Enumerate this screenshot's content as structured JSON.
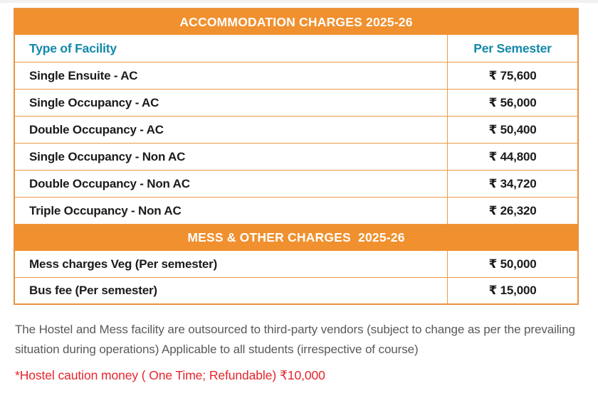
{
  "colors": {
    "band_orange": "#f0902e",
    "border_orange": "#ee9a45",
    "header_teal": "#1389a8",
    "row_text": "#1b1b1b",
    "note_gray": "#58595b",
    "caution_red": "#e4252c"
  },
  "accommodation": {
    "title": "ACCOMMODATION CHARGES 2025-26",
    "col_facility": "Type of Facility",
    "col_charge": "Per Semester",
    "rows": [
      {
        "facility": "Single Ensuite - AC",
        "charge": "₹ 75,600"
      },
      {
        "facility": "Single Occupancy - AC",
        "charge": "₹ 56,000"
      },
      {
        "facility": "Double Occupancy - AC",
        "charge": "₹ 50,400"
      },
      {
        "facility": "Single Occupancy - Non AC",
        "charge": "₹ 44,800"
      },
      {
        "facility": "Double Occupancy - Non AC",
        "charge": "₹ 34,720"
      },
      {
        "facility": "Triple Occupancy - Non AC",
        "charge": "₹ 26,320"
      }
    ]
  },
  "mess": {
    "title": "MESS & OTHER CHARGES  2025-26",
    "rows": [
      {
        "facility": "Mess charges Veg (Per semester)",
        "charge": "₹ 50,000"
      },
      {
        "facility": "Bus fee (Per semester)",
        "charge": "₹ 15,000"
      }
    ]
  },
  "notes": {
    "outsourced": "The Hostel and Mess facility are outsourced to third-party vendors (subject to change as per the prevailing situation during operations) Applicable to all students (irrespective of course)",
    "caution": "*Hostel caution money ( One Time; Refundable) ₹10,000"
  }
}
